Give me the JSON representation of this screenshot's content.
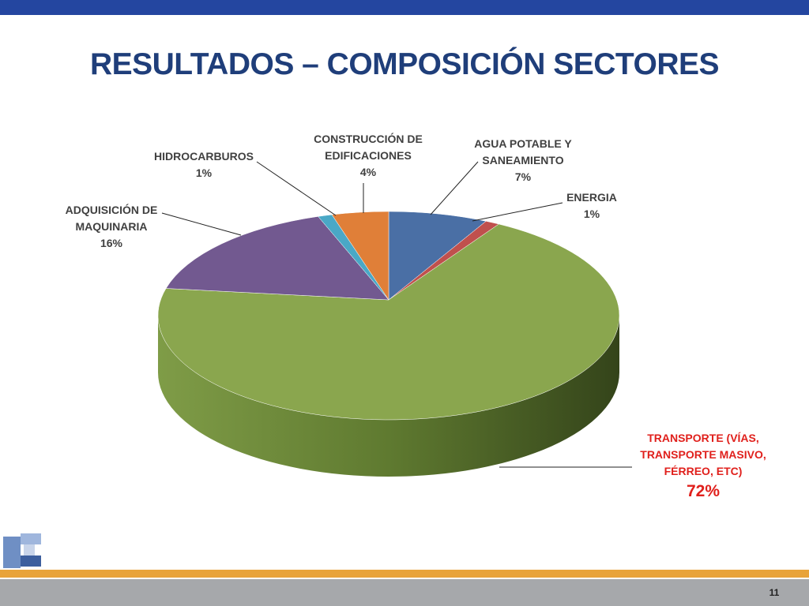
{
  "chart_data": {
    "type": "pie3d",
    "title": "RESULTADOS – COMPOSICIÓN SECTORES",
    "categories": [
      "AGUA POTABLE Y SANEAMIENTO",
      "ENERGIA",
      "TRANSPORTE (VÍAS, TRANSPORTE MASIVO, FÉRREO, ETC)",
      "ADQUISICIÓN DE MAQUINARIA",
      "HIDROCARBUROS",
      "CONSTRUCCIÓN DE EDIFICACIONES"
    ],
    "values": [
      7,
      1,
      72,
      16,
      1,
      4
    ],
    "value_labels": [
      "7%",
      "1%",
      "72%",
      "16%",
      "1%",
      "4%"
    ],
    "colors": [
      "#4a6fa5",
      "#c0504d",
      "#8aa64e",
      "#725990",
      "#4aa8c6",
      "#e07f38"
    ]
  },
  "footer": {
    "page_number": "11"
  }
}
